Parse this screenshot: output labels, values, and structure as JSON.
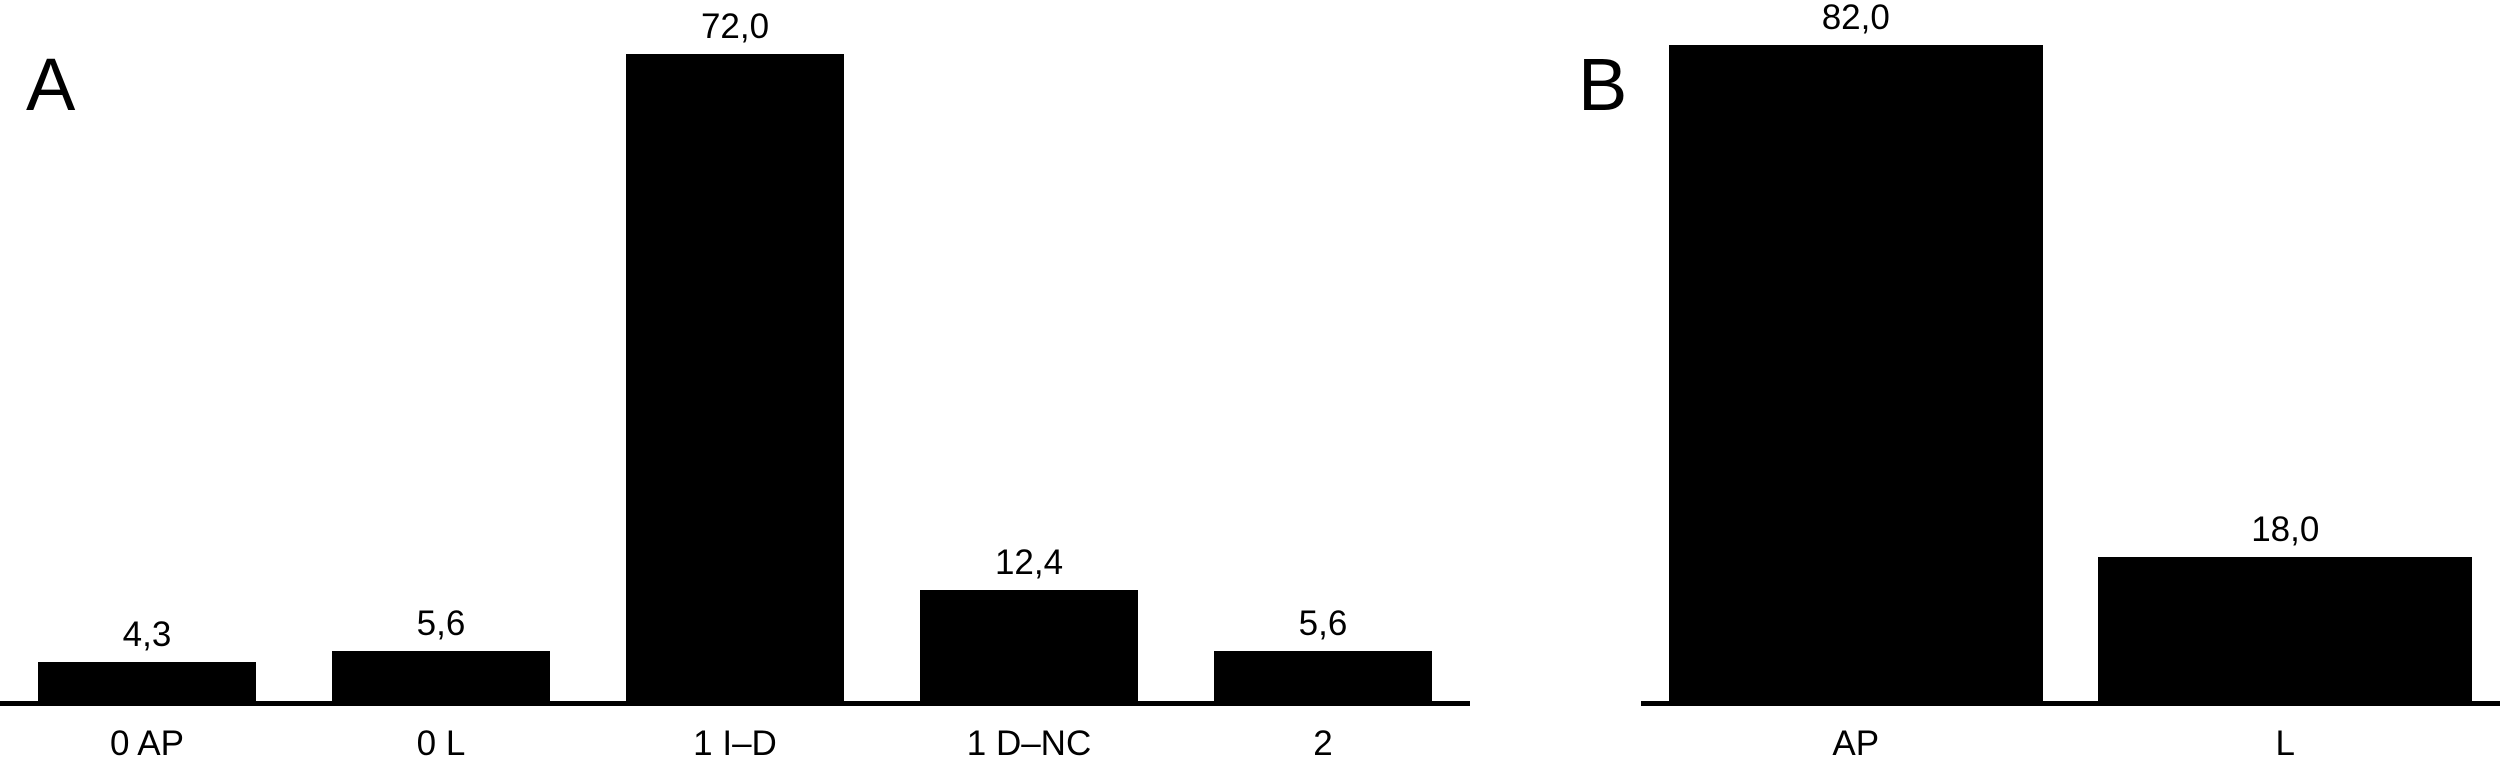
{
  "figure": {
    "background": "#ffffff",
    "bar_color": "#000000",
    "text_color": "#000000",
    "panel_count": 2
  },
  "chart_data": [
    {
      "type": "bar",
      "panel_label": "A",
      "categories": [
        "0 AP",
        "0 L",
        "1 I–D",
        "1 D–NC",
        "2"
      ],
      "values": [
        4.3,
        5.6,
        72.0,
        12.4,
        5.6
      ],
      "value_labels": [
        "4,3",
        "5,6",
        "72,0",
        "12,4",
        "5,6"
      ],
      "title": "",
      "xlabel": "",
      "ylabel": "",
      "ylim": [
        0,
        78
      ],
      "grid": false,
      "legend": false,
      "bar_color": "#000000",
      "value_label_position": "above-bar",
      "decimal_separator": "comma"
    },
    {
      "type": "bar",
      "panel_label": "B",
      "categories": [
        "AP",
        "L"
      ],
      "values": [
        82.0,
        18.0
      ],
      "value_labels": [
        "82,0",
        "18,0"
      ],
      "title": "",
      "xlabel": "",
      "ylabel": "",
      "ylim": [
        0,
        87.5
      ],
      "grid": false,
      "legend": false,
      "bar_color": "#000000",
      "value_label_position": "above-bar",
      "decimal_separator": "comma"
    }
  ]
}
